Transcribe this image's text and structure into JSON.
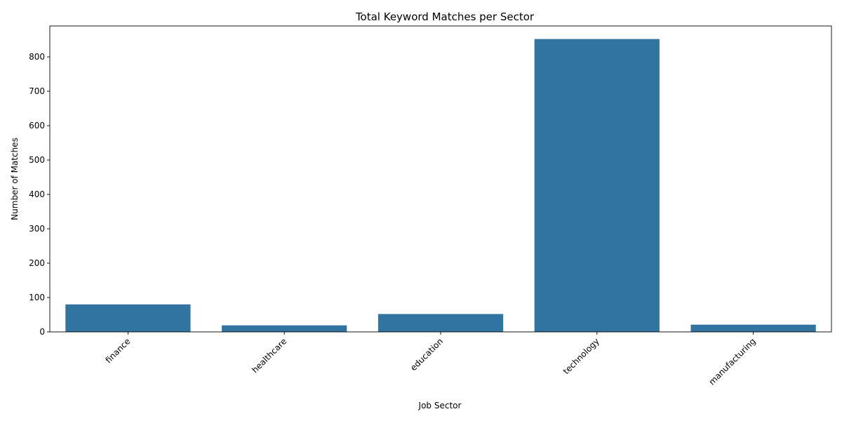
{
  "chart_data": {
    "type": "bar",
    "title": "Total Keyword Matches per Sector",
    "xlabel": "Job Sector",
    "ylabel": "Number of Matches",
    "categories": [
      "finance",
      "healthcare",
      "education",
      "technology",
      "manufacturing"
    ],
    "values": [
      80,
      19,
      52,
      852,
      21
    ],
    "ylim": [
      0,
      890
    ],
    "yticks": [
      0,
      100,
      200,
      300,
      400,
      500,
      600,
      700,
      800
    ],
    "ytick_labels": [
      "0",
      "100",
      "200",
      "300",
      "400",
      "500",
      "600",
      "700",
      "800"
    ],
    "xtick_rotation": 45,
    "grid": false,
    "legend": "none",
    "bar_color": "#3274a1"
  }
}
